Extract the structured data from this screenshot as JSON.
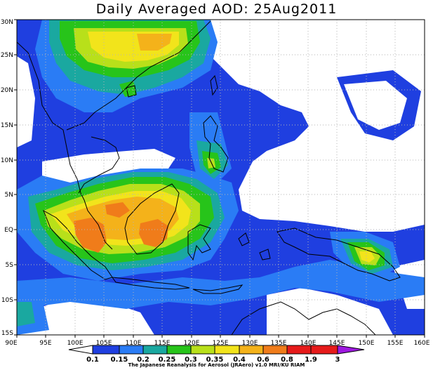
{
  "title": "Daily Averaged AOD: 25Aug2011",
  "credit": "The Japanese Reanalysis for Aerosol (JRAero) v1.0 MRI/KU RIAM",
  "map": {
    "lon_range": [
      90,
      160
    ],
    "lat_range": [
      -15,
      30
    ],
    "lon_ticks": [
      "90E",
      "95E",
      "100E",
      "105E",
      "110E",
      "115E",
      "120E",
      "125E",
      "130E",
      "135E",
      "140E",
      "145E",
      "150E",
      "155E",
      "160E"
    ],
    "lat_ticks": [
      "30N",
      "25N",
      "20N",
      "15N",
      "10N",
      "5N",
      "EQ",
      "5S",
      "10S",
      "15S"
    ],
    "grid": "dotted"
  },
  "colorbar": {
    "labels": [
      "0.1",
      "0.15",
      "0.2",
      "0.25",
      "0.3",
      "0.35",
      "0.4",
      "0.6",
      "0.8",
      "1.9",
      "3"
    ],
    "colors": [
      "#ffffff",
      "#1f3fe0",
      "#2a7cf5",
      "#1aa8a0",
      "#27c41a",
      "#b8e01a",
      "#f2e41b",
      "#f4b21a",
      "#f07c1a",
      "#e61a1a",
      "#9e19e0"
    ]
  }
}
